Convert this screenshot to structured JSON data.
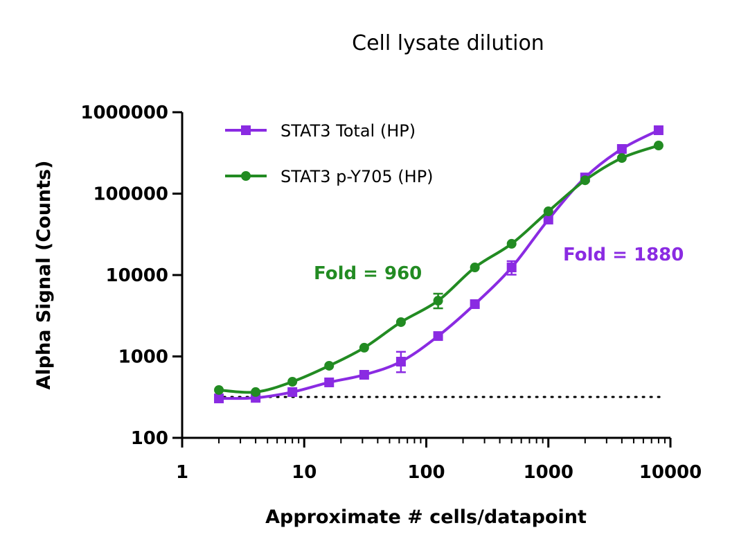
{
  "chart_data": {
    "type": "line",
    "title": "Cell lysate dilution",
    "xlabel": "Approximate # cells/datapoint",
    "ylabel": "Alpha Signal (Counts)",
    "xscale": "log",
    "yscale": "log",
    "xlim": [
      1,
      10000
    ],
    "ylim": [
      100,
      1000000
    ],
    "xticks": [
      "1",
      "10",
      "100",
      "1000",
      "10000"
    ],
    "yticks": [
      "100",
      "1000",
      "10000",
      "100000",
      "1000000"
    ],
    "grid": false,
    "legend_position": "top-left",
    "baseline": 318,
    "x": [
      2,
      4,
      8,
      16,
      31,
      62,
      125,
      250,
      500,
      1000,
      2000,
      4000,
      8000
    ],
    "series": [
      {
        "name": "STAT3 Total (HP)",
        "color": "#8a2be2",
        "marker": "square",
        "values": [
          305,
          310,
          365,
          480,
          595,
          863,
          1780,
          4390,
          12400,
          48000,
          158000,
          354000,
          601000
        ],
        "error_bars": [
          {
            "x": 62,
            "low": 640,
            "high": 1140
          },
          {
            "x": 500,
            "low": 10100,
            "high": 14800
          }
        ]
      },
      {
        "name": "STAT3 p-Y705 (HP)",
        "color": "#228b22",
        "marker": "circle",
        "values": [
          387,
          365,
          489,
          768,
          1280,
          2640,
          4840,
          12400,
          24200,
          60600,
          146000,
          274000,
          390000
        ],
        "error_bars": [
          {
            "x": 125,
            "low": 3900,
            "high": 5900
          }
        ]
      }
    ],
    "annotations": [
      {
        "text": "Fold = 960",
        "color": "#228b22"
      },
      {
        "text": "Fold = 1880",
        "color": "#8a2be2"
      }
    ]
  }
}
